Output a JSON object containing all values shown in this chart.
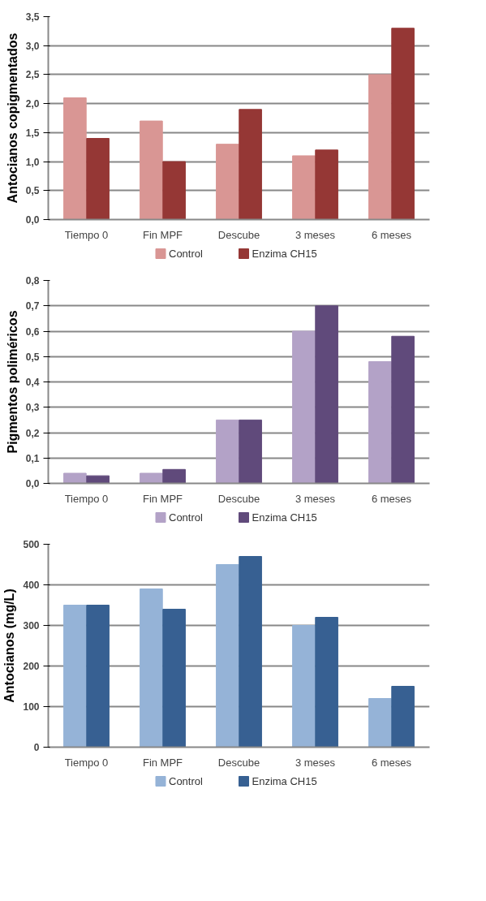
{
  "chart_data": [
    {
      "type": "bar",
      "ylabel": "Antocianos copigmentados",
      "categories": [
        "Tiempo 0",
        "Fin MPF",
        "Descube",
        "3 meses",
        "6 meses"
      ],
      "series": [
        {
          "name": "Control",
          "color": "#d99694",
          "values": [
            2.1,
            1.7,
            1.3,
            1.1,
            2.5
          ]
        },
        {
          "name": "Enzima CH15",
          "color": "#953735",
          "values": [
            1.4,
            1.0,
            1.9,
            1.2,
            3.3
          ]
        }
      ],
      "ylim": [
        0,
        3.5
      ],
      "yticks": [
        {
          "value": 0,
          "label": "0,0"
        },
        {
          "value": 0.5,
          "label": "0,5"
        },
        {
          "value": 1,
          "label": "1,0"
        },
        {
          "value": 1.5,
          "label": "1,5"
        },
        {
          "value": 2,
          "label": "2,0"
        },
        {
          "value": 2.5,
          "label": "2,5"
        },
        {
          "value": 3,
          "label": "3,0"
        },
        {
          "value": 3.5,
          "label": "3,5"
        }
      ],
      "grid": "y",
      "legend": "bottom"
    },
    {
      "type": "bar",
      "ylabel": "Pigmentos poliméricos",
      "categories": [
        "Tiempo 0",
        "Fin MPF",
        "Descube",
        "3 meses",
        "6 meses"
      ],
      "series": [
        {
          "name": "Control",
          "color": "#b3a2c7",
          "values": [
            0.04,
            0.04,
            0.25,
            0.6,
            0.48
          ]
        },
        {
          "name": "Enzima CH15",
          "color": "#604a7b",
          "values": [
            0.03,
            0.055,
            0.25,
            0.7,
            0.58
          ]
        }
      ],
      "ylim": [
        0,
        0.8
      ],
      "yticks": [
        {
          "value": 0,
          "label": "0,0"
        },
        {
          "value": 0.1,
          "label": "0,1"
        },
        {
          "value": 0.2,
          "label": "0,2"
        },
        {
          "value": 0.3,
          "label": "0,3"
        },
        {
          "value": 0.4,
          "label": "0,4"
        },
        {
          "value": 0.5,
          "label": "0,5"
        },
        {
          "value": 0.6,
          "label": "0,6"
        },
        {
          "value": 0.7,
          "label": "0,7"
        },
        {
          "value": 0.8,
          "label": "0,8"
        }
      ],
      "grid": "y",
      "legend": "bottom"
    },
    {
      "type": "bar",
      "ylabel": "Antocianos (mg/L)",
      "categories": [
        "Tiempo 0",
        "Fin MPF",
        "Descube",
        "3 meses",
        "6 meses"
      ],
      "series": [
        {
          "name": "Control",
          "color": "#95b3d7",
          "values": [
            350,
            390,
            450,
            300,
            120
          ]
        },
        {
          "name": "Enzima CH15",
          "color": "#376092",
          "values": [
            350,
            340,
            470,
            320,
            150
          ]
        }
      ],
      "ylim": [
        0,
        500
      ],
      "yticks": [
        0,
        100,
        200,
        300,
        400,
        500
      ],
      "grid": "y",
      "legend": "bottom"
    }
  ]
}
